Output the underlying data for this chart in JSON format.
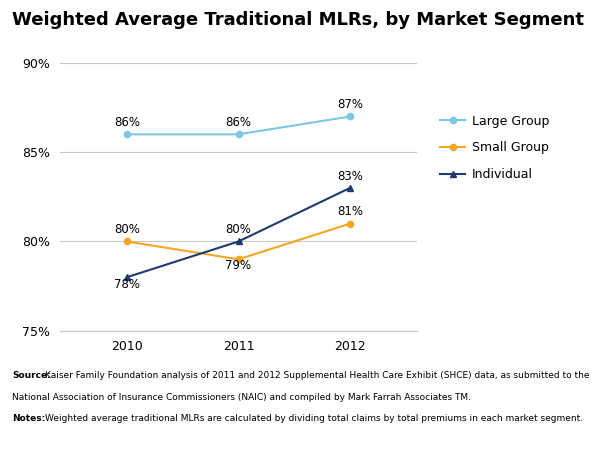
{
  "title": "Weighted Average Traditional MLRs, by Market Segment",
  "years": [
    2010,
    2011,
    2012
  ],
  "large_group": [
    0.86,
    0.86,
    0.87
  ],
  "small_group": [
    0.8,
    0.79,
    0.81
  ],
  "individual": [
    0.78,
    0.8,
    0.83
  ],
  "large_group_labels": [
    "86%",
    "86%",
    "87%"
  ],
  "small_group_labels": [
    "80%",
    "79%",
    "81%"
  ],
  "individual_labels": [
    "78%",
    "80%",
    "83%"
  ],
  "large_group_color": "#7ec8e3",
  "small_group_color": "#f5a623",
  "individual_color": "#1f3a6e",
  "ylim": [
    0.75,
    0.905
  ],
  "yticks": [
    0.75,
    0.8,
    0.85,
    0.9
  ],
  "ytick_labels": [
    "75%",
    "80%",
    "85%",
    "90%"
  ],
  "legend_labels": [
    "Large Group",
    "Small Group",
    "Individual"
  ],
  "background_color": "#ffffff",
  "grid_color": "#c8c8c8",
  "title_fontsize": 13,
  "tick_fontsize": 9,
  "legend_fontsize": 9,
  "annotation_fontsize": 8.5,
  "source_fontsize": 6.5,
  "logo_color": "#1a3560"
}
